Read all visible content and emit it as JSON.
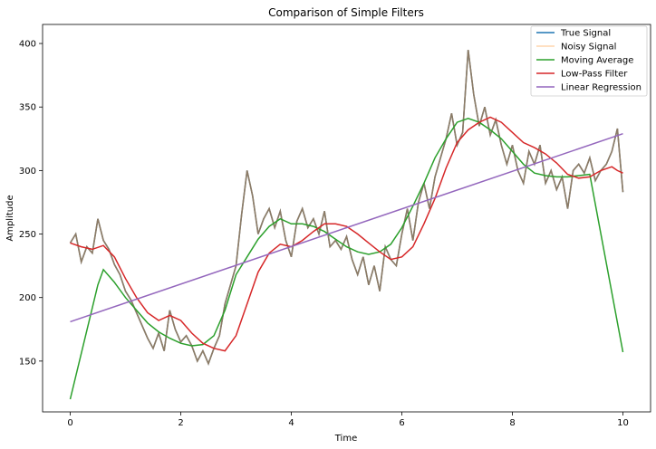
{
  "chart_data": {
    "type": "line",
    "title": "Comparison of Simple Filters",
    "xlabel": "Time",
    "ylabel": "Amplitude",
    "xlim": [
      -0.5,
      10.5
    ],
    "ylim": [
      110,
      415
    ],
    "xticks": [
      0,
      2,
      4,
      6,
      8,
      10
    ],
    "yticks": [
      150,
      200,
      250,
      300,
      350,
      400
    ],
    "grid": false,
    "legend_position": "top-right",
    "series": [
      {
        "name": "True Signal",
        "color": "#1f77b4",
        "x": [
          0,
          0.1,
          0.2,
          0.3,
          0.4,
          0.5,
          0.6,
          0.7,
          0.8,
          0.9,
          1.0,
          1.1,
          1.2,
          1.3,
          1.4,
          1.5,
          1.6,
          1.7,
          1.8,
          1.9,
          2.0,
          2.1,
          2.2,
          2.3,
          2.4,
          2.5,
          2.6,
          2.7,
          2.8,
          2.9,
          3.0,
          3.1,
          3.2,
          3.3,
          3.4,
          3.5,
          3.6,
          3.7,
          3.8,
          3.9,
          4.0,
          4.1,
          4.2,
          4.3,
          4.4,
          4.5,
          4.6,
          4.7,
          4.8,
          4.9,
          5.0,
          5.1,
          5.2,
          5.3,
          5.4,
          5.5,
          5.6,
          5.7,
          5.8,
          5.9,
          6.0,
          6.1,
          6.2,
          6.3,
          6.4,
          6.5,
          6.6,
          6.7,
          6.8,
          6.9,
          7.0,
          7.1,
          7.2,
          7.3,
          7.4,
          7.5,
          7.6,
          7.7,
          7.8,
          7.9,
          8.0,
          8.1,
          8.2,
          8.3,
          8.4,
          8.5,
          8.6,
          8.7,
          8.8,
          8.9,
          9.0,
          9.1,
          9.2,
          9.3,
          9.4,
          9.5,
          9.6,
          9.7,
          9.8,
          9.9,
          10.0
        ],
        "values": [
          243,
          250,
          228,
          240,
          235,
          262,
          245,
          238,
          226,
          218,
          205,
          198,
          188,
          178,
          168,
          160,
          172,
          158,
          190,
          175,
          165,
          170,
          162,
          150,
          158,
          148,
          160,
          170,
          195,
          210,
          225,
          265,
          300,
          280,
          250,
          262,
          270,
          255,
          268,
          245,
          232,
          260,
          270,
          255,
          262,
          250,
          268,
          240,
          245,
          238,
          248,
          230,
          218,
          232,
          210,
          225,
          205,
          240,
          230,
          225,
          250,
          270,
          245,
          275,
          290,
          270,
          295,
          310,
          325,
          345,
          320,
          330,
          395,
          360,
          335,
          350,
          328,
          340,
          320,
          305,
          320,
          300,
          290,
          315,
          305,
          320,
          290,
          300,
          285,
          295,
          270,
          300,
          305,
          298,
          310,
          292,
          300,
          305,
          315,
          333,
          283
        ]
      },
      {
        "name": "Noisy Signal",
        "color": "#ffbb78",
        "x": [
          0,
          0.1,
          0.2,
          0.3,
          0.4,
          0.5,
          0.6,
          0.7,
          0.8,
          0.9,
          1.0,
          1.1,
          1.2,
          1.3,
          1.4,
          1.5,
          1.6,
          1.7,
          1.8,
          1.9,
          2.0,
          2.1,
          2.2,
          2.3,
          2.4,
          2.5,
          2.6,
          2.7,
          2.8,
          2.9,
          3.0,
          3.1,
          3.2,
          3.3,
          3.4,
          3.5,
          3.6,
          3.7,
          3.8,
          3.9,
          4.0,
          4.1,
          4.2,
          4.3,
          4.4,
          4.5,
          4.6,
          4.7,
          4.8,
          4.9,
          5.0,
          5.1,
          5.2,
          5.3,
          5.4,
          5.5,
          5.6,
          5.7,
          5.8,
          5.9,
          6.0,
          6.1,
          6.2,
          6.3,
          6.4,
          6.5,
          6.6,
          6.7,
          6.8,
          6.9,
          7.0,
          7.1,
          7.2,
          7.3,
          7.4,
          7.5,
          7.6,
          7.7,
          7.8,
          7.9,
          8.0,
          8.1,
          8.2,
          8.3,
          8.4,
          8.5,
          8.6,
          8.7,
          8.8,
          8.9,
          9.0,
          9.1,
          9.2,
          9.3,
          9.4,
          9.5,
          9.6,
          9.7,
          9.8,
          9.9,
          10.0
        ],
        "values": [
          243,
          250,
          228,
          240,
          235,
          262,
          245,
          238,
          226,
          218,
          205,
          198,
          188,
          178,
          168,
          160,
          172,
          158,
          190,
          175,
          165,
          170,
          162,
          150,
          158,
          148,
          160,
          170,
          195,
          210,
          225,
          265,
          300,
          280,
          250,
          262,
          270,
          255,
          268,
          245,
          232,
          260,
          270,
          255,
          262,
          250,
          268,
          240,
          245,
          238,
          248,
          230,
          218,
          232,
          210,
          225,
          205,
          240,
          230,
          225,
          250,
          270,
          245,
          275,
          290,
          270,
          295,
          310,
          325,
          345,
          320,
          330,
          395,
          360,
          335,
          350,
          328,
          340,
          320,
          305,
          320,
          300,
          290,
          315,
          305,
          320,
          290,
          300,
          285,
          295,
          270,
          300,
          305,
          298,
          310,
          292,
          300,
          305,
          315,
          333,
          283
        ]
      },
      {
        "name": "Moving Average",
        "color": "#2ca02c",
        "x": [
          0,
          0.5,
          0.6,
          0.8,
          1.0,
          1.2,
          1.4,
          1.6,
          1.8,
          2.0,
          2.2,
          2.4,
          2.6,
          2.8,
          3.0,
          3.2,
          3.4,
          3.6,
          3.8,
          4.0,
          4.2,
          4.4,
          4.6,
          4.8,
          5.0,
          5.2,
          5.4,
          5.6,
          5.8,
          6.0,
          6.2,
          6.4,
          6.6,
          6.8,
          7.0,
          7.2,
          7.4,
          7.6,
          7.8,
          8.0,
          8.2,
          8.4,
          8.6,
          8.8,
          9.0,
          9.2,
          9.4,
          10.0
        ],
        "values": [
          120,
          210,
          222,
          212,
          200,
          190,
          180,
          173,
          168,
          164,
          162,
          163,
          170,
          190,
          218,
          232,
          246,
          256,
          262,
          258,
          258,
          256,
          252,
          246,
          240,
          236,
          234,
          236,
          242,
          255,
          272,
          290,
          310,
          325,
          338,
          341,
          338,
          332,
          325,
          315,
          305,
          298,
          296,
          295,
          295,
          296,
          297,
          157
        ]
      },
      {
        "name": "Low-Pass Filter",
        "color": "#d62728",
        "x": [
          0,
          0.2,
          0.4,
          0.6,
          0.8,
          1.0,
          1.2,
          1.4,
          1.6,
          1.8,
          2.0,
          2.2,
          2.4,
          2.6,
          2.8,
          3.0,
          3.2,
          3.4,
          3.6,
          3.8,
          4.0,
          4.2,
          4.4,
          4.6,
          4.8,
          5.0,
          5.2,
          5.4,
          5.6,
          5.8,
          6.0,
          6.2,
          6.4,
          6.6,
          6.8,
          7.0,
          7.2,
          7.4,
          7.6,
          7.8,
          8.0,
          8.2,
          8.4,
          8.6,
          8.8,
          9.0,
          9.2,
          9.4,
          9.6,
          9.8,
          9.9,
          10.0
        ],
        "values": [
          243,
          240,
          238,
          241,
          232,
          215,
          200,
          188,
          182,
          186,
          182,
          172,
          164,
          160,
          158,
          170,
          195,
          220,
          235,
          242,
          240,
          245,
          252,
          258,
          258,
          256,
          250,
          243,
          236,
          230,
          232,
          240,
          258,
          278,
          302,
          322,
          332,
          338,
          342,
          338,
          330,
          322,
          318,
          313,
          306,
          297,
          294,
          295,
          300,
          303,
          300,
          298
        ]
      },
      {
        "name": "Linear Regression",
        "color": "#9467bd",
        "x": [
          0,
          10
        ],
        "values": [
          181,
          329
        ]
      }
    ],
    "overlay": {
      "comment_free": true,
      "color": "#8c7b66",
      "source_series": 1
    }
  }
}
